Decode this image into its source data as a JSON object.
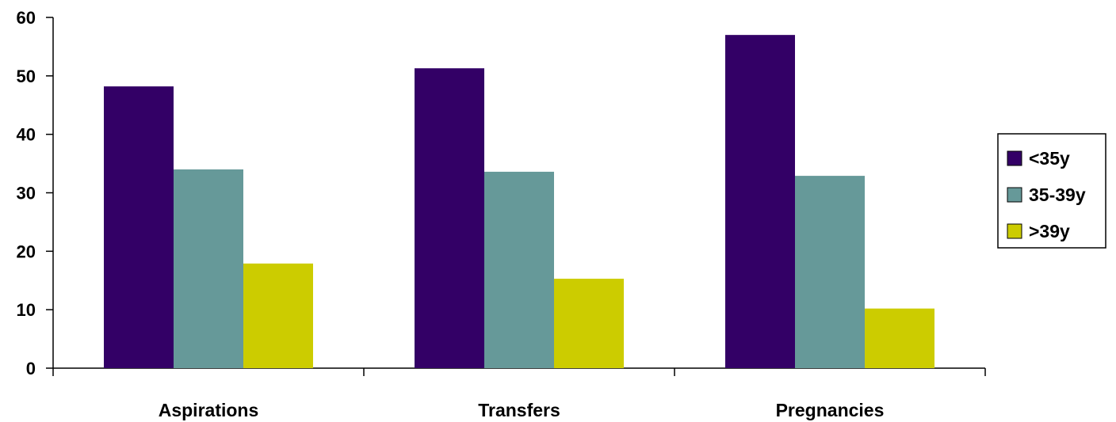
{
  "chart_data": {
    "type": "bar",
    "title": "",
    "xlabel": "",
    "ylabel": "",
    "categories": [
      "Aspirations",
      "Transfers",
      "Pregnancies"
    ],
    "series": [
      {
        "name": "<35y",
        "color": "#330066",
        "values": [
          48.2,
          51.3,
          57.0
        ]
      },
      {
        "name": "35-39y",
        "color": "#669999",
        "values": [
          34.0,
          33.6,
          32.9
        ]
      },
      {
        "name": ">39y",
        "color": "#cccc00",
        "values": [
          17.9,
          15.3,
          10.2
        ]
      }
    ],
    "ylim": [
      0,
      60
    ],
    "yticks": [
      "0",
      "10",
      "20",
      "30",
      "40",
      "50",
      "60"
    ],
    "grid": false,
    "legend": "right"
  }
}
